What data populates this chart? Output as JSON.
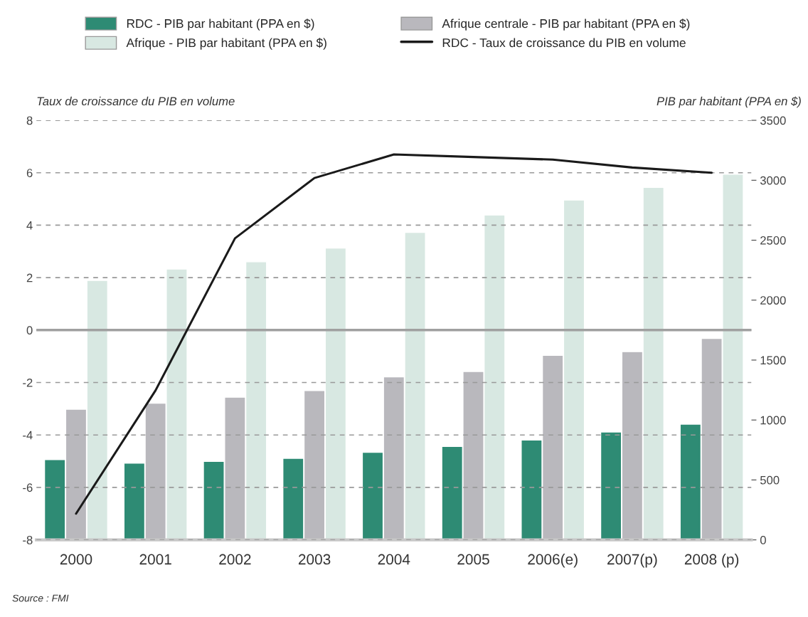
{
  "chart_data": {
    "type": "bar",
    "categories": [
      "2000",
      "2001",
      "2002",
      "2003",
      "2004",
      "2005",
      "2006(e)",
      "2007(p)",
      "2008 (p)"
    ],
    "series": [
      {
        "name": "RDC - PIB par habitant (PPA en $)",
        "color": "#2e8b74",
        "axis": "y2",
        "values": [
          670,
          640,
          655,
          680,
          730,
          780,
          833,
          900,
          965
        ]
      },
      {
        "name": "Afrique centrale - PIB par habitant (PPA en $)",
        "color": "#b9b8bd",
        "axis": "y2",
        "values": [
          1090,
          1140,
          1190,
          1245,
          1360,
          1405,
          1540,
          1570,
          1680
        ]
      },
      {
        "name": "Afrique - PIB par habitant (PPA en $)",
        "color": "#d8e8e2",
        "axis": "y2",
        "values": [
          2165,
          2260,
          2320,
          2435,
          2565,
          2710,
          2835,
          2940,
          3050
        ]
      },
      {
        "name": "RDC - Taux de croissance du PIB en volume",
        "type": "line",
        "color": "#1a1a1a",
        "axis": "y",
        "values": [
          -7.0,
          -2.3,
          3.5,
          5.8,
          6.7,
          6.6,
          6.5,
          6.2,
          6.0
        ]
      }
    ],
    "ylabel": "Taux de croissance du PIB en volume",
    "y2label": "PIB par habitant (PPA en $)",
    "ylim": [
      -8,
      8
    ],
    "yticks": [
      -8,
      -6,
      -4,
      -2,
      0,
      2,
      4,
      6,
      8
    ],
    "y2lim": [
      0,
      3500
    ],
    "y2ticks": [
      0,
      500,
      1000,
      1500,
      2000,
      2500,
      3000,
      3500
    ],
    "ref_lines": [
      {
        "axis": "y",
        "value": 0,
        "color": "#a0a0a0",
        "line_style": "solid"
      }
    ],
    "grid": "y",
    "legend": "top",
    "marker": "none",
    "line_style": "solid",
    "annotations": [
      "Source : FMI"
    ]
  }
}
